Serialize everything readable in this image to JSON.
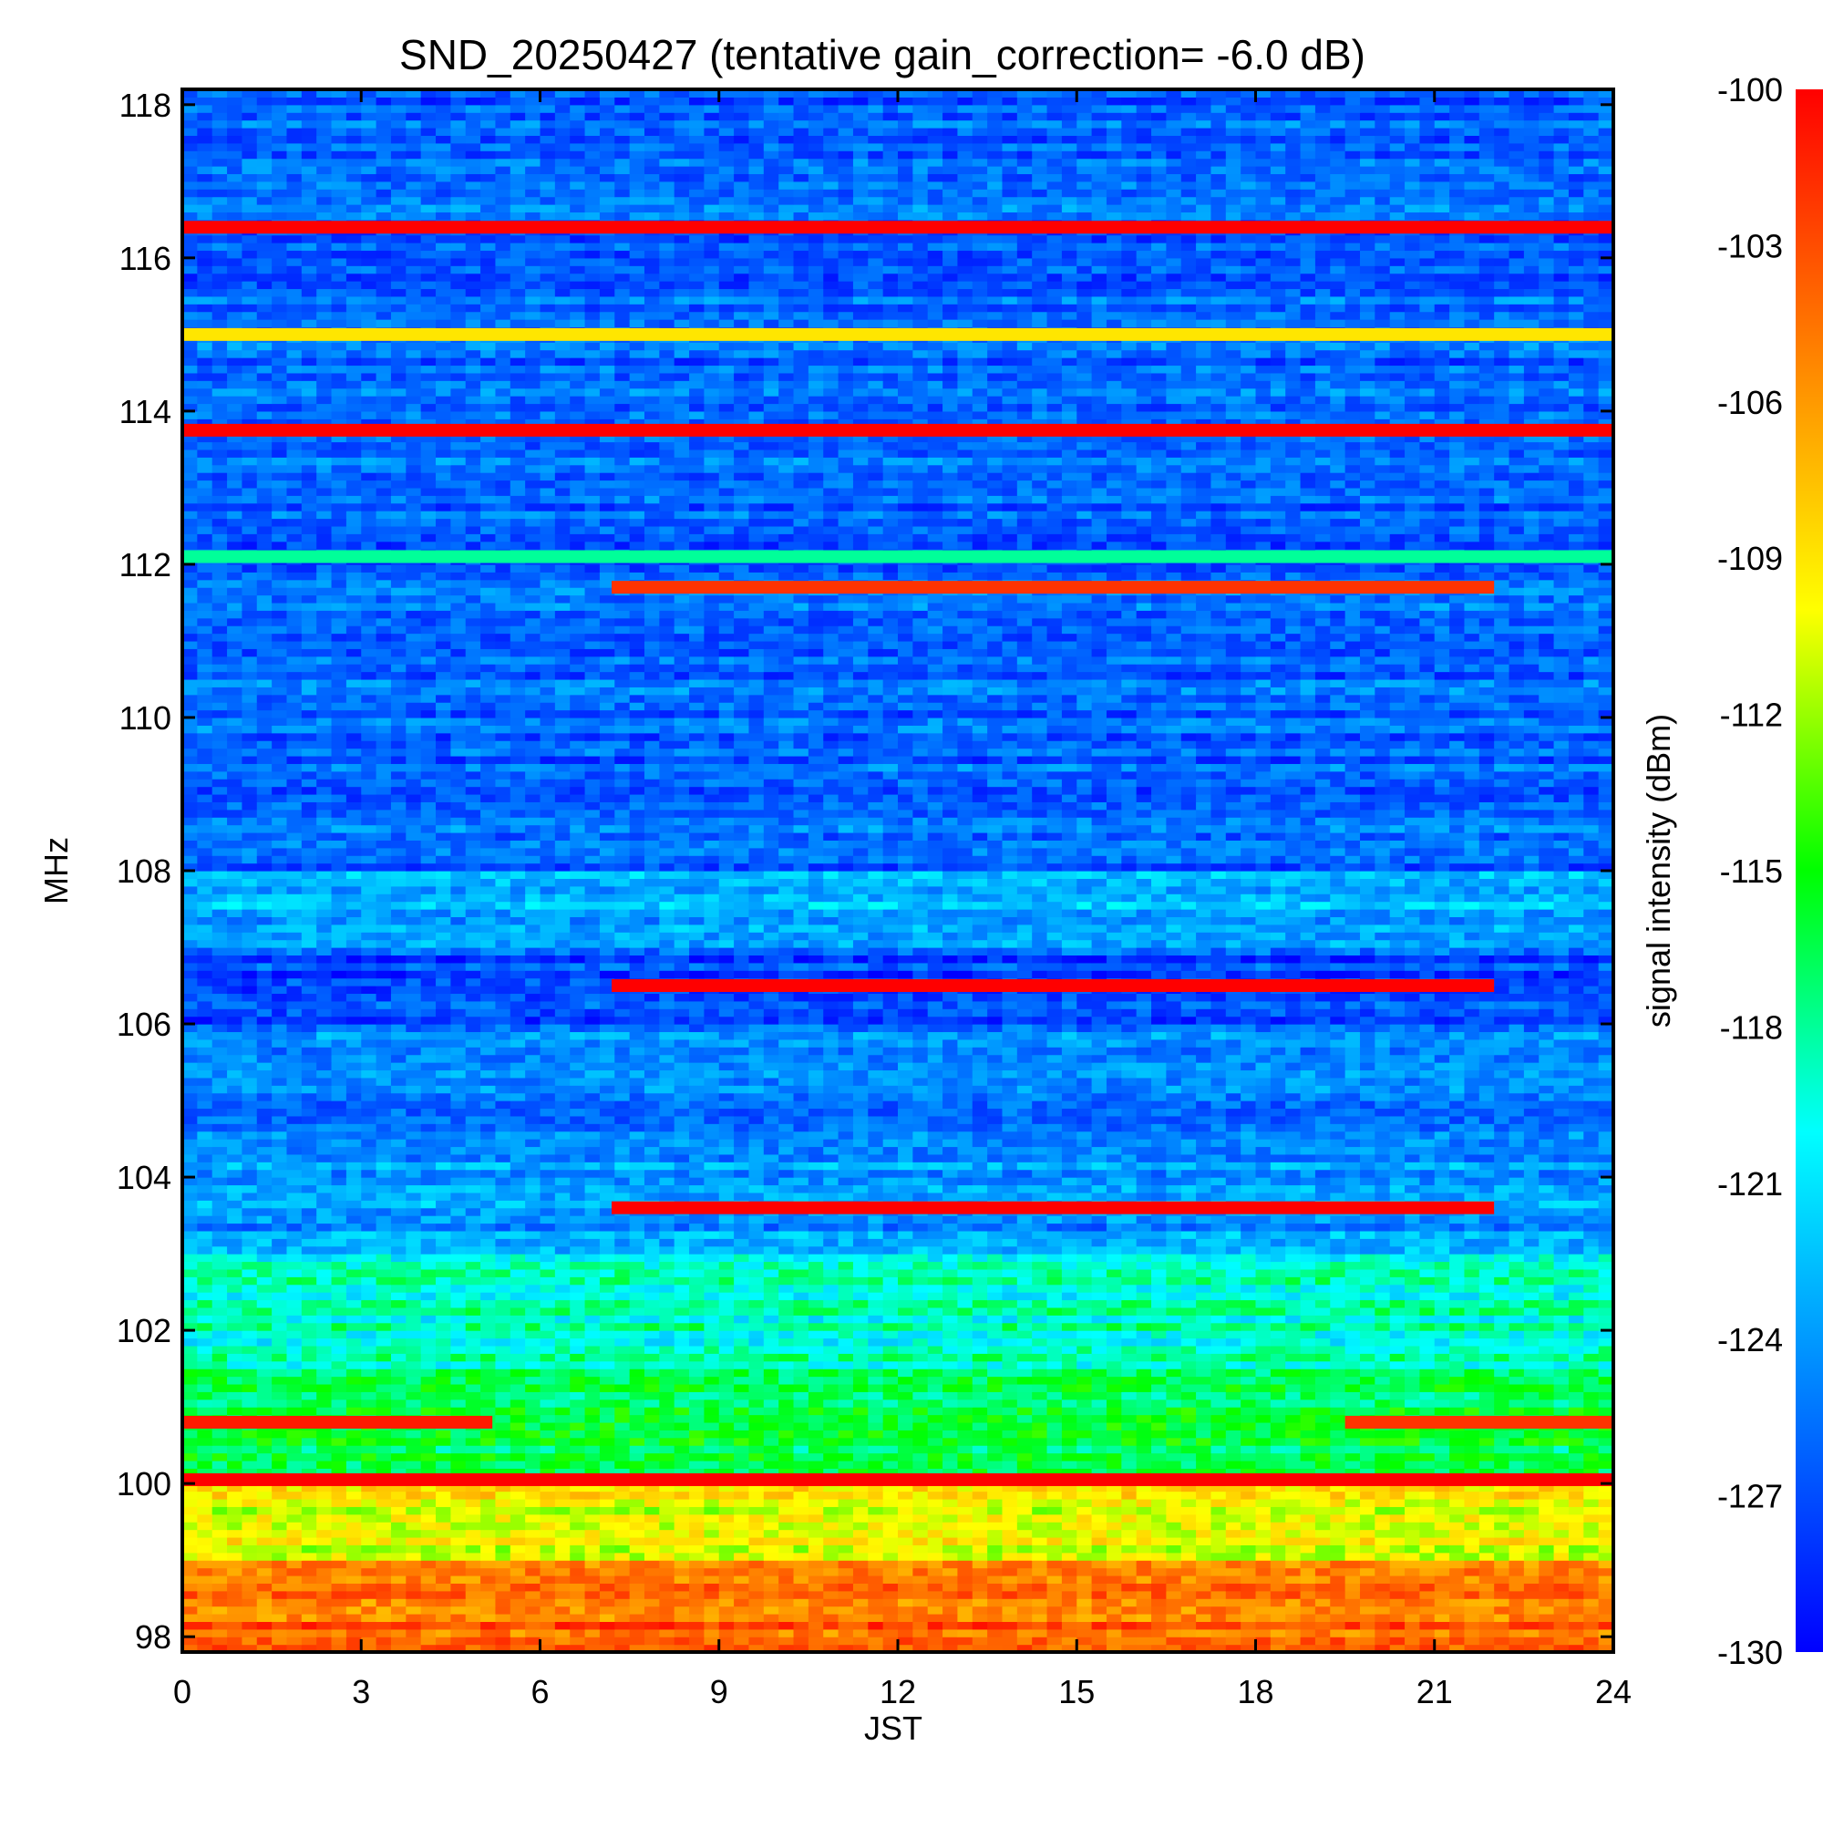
{
  "chart_data": {
    "type": "heatmap",
    "title": "SND_20250427 (tentative gain_correction= -6.0 dB)",
    "xlabel": "JST",
    "ylabel": "MHz",
    "colorbar_label": "signal intensity (dBm)",
    "xlim": [
      0,
      24
    ],
    "ylim": [
      97.8,
      118.2
    ],
    "x_ticks": [
      0,
      3,
      6,
      9,
      12,
      15,
      18,
      21,
      24
    ],
    "x_tick_labels": [
      "0",
      "3",
      "6",
      "9",
      "12",
      "15",
      "18",
      "21",
      "24"
    ],
    "y_ticks": [
      98,
      100,
      102,
      104,
      106,
      108,
      110,
      112,
      114,
      116,
      118
    ],
    "y_tick_labels": [
      "98",
      "100",
      "102",
      "104",
      "106",
      "108",
      "110",
      "112",
      "114",
      "116",
      "118"
    ],
    "color_range": [
      -130,
      -100
    ],
    "colorbar_ticks": [
      -100,
      -103,
      -106,
      -109,
      -112,
      -115,
      -118,
      -121,
      -124,
      -127,
      -130
    ],
    "colorbar_tick_labels": [
      "-100",
      "-103",
      "-106",
      "-109",
      "-112",
      "-115",
      "-118",
      "-121",
      "-124",
      "-127",
      "-130"
    ],
    "colormap": [
      "#0000ff",
      "#0080ff",
      "#00ffff",
      "#00ff00",
      "#ffff00",
      "#ff8000",
      "#ff0000"
    ],
    "features": [
      {
        "kind": "continuous",
        "freq_mhz": 116.4,
        "t_start": 0,
        "t_end": 24,
        "level_dbm": -100
      },
      {
        "kind": "continuous",
        "freq_mhz": 115.0,
        "t_start": 0,
        "t_end": 24,
        "level_dbm": -109
      },
      {
        "kind": "continuous",
        "freq_mhz": 113.75,
        "t_start": 0,
        "t_end": 24,
        "level_dbm": -100
      },
      {
        "kind": "continuous",
        "freq_mhz": 112.1,
        "t_start": 0,
        "t_end": 24,
        "level_dbm": -118
      },
      {
        "kind": "continuous",
        "freq_mhz": 111.7,
        "t_start": 7.2,
        "t_end": 22,
        "level_dbm": -102
      },
      {
        "kind": "continuous",
        "freq_mhz": 106.5,
        "t_start": 7.2,
        "t_end": 22,
        "level_dbm": -100
      },
      {
        "kind": "continuous",
        "freq_mhz": 103.6,
        "t_start": 7.2,
        "t_end": 22,
        "level_dbm": -100
      },
      {
        "kind": "continuous",
        "freq_mhz": 100.8,
        "t_start": 0,
        "t_end": 5.2,
        "level_dbm": -101
      },
      {
        "kind": "continuous",
        "freq_mhz": 100.8,
        "t_start": 19.5,
        "t_end": 24,
        "level_dbm": -102
      },
      {
        "kind": "continuous",
        "freq_mhz": 100.05,
        "t_start": 0,
        "t_end": 24,
        "level_dbm": -100
      }
    ]
  }
}
